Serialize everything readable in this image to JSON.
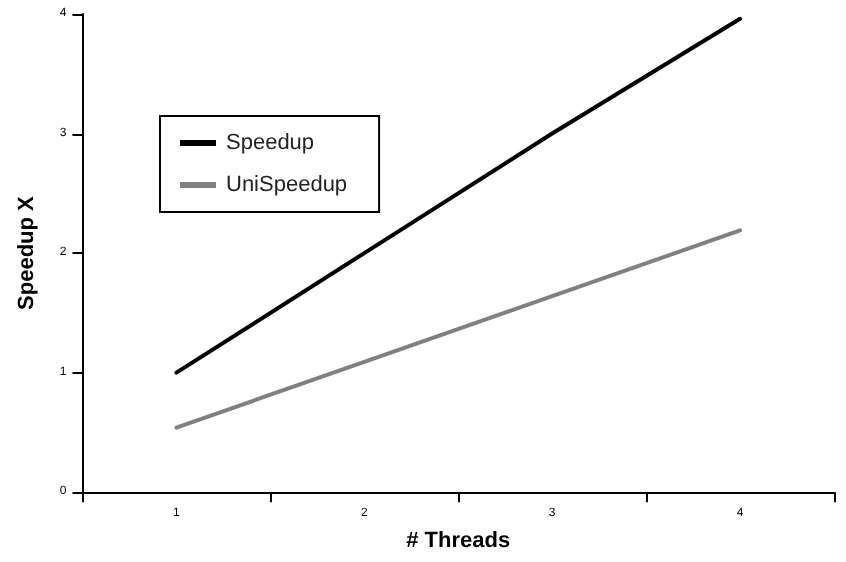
{
  "chart_data": {
    "type": "line",
    "xlabel": "# Threads",
    "ylabel": "Speedup X",
    "categories": [
      "1",
      "2",
      "3",
      "4"
    ],
    "series": [
      {
        "name": "Speedup",
        "color": "#000000",
        "values": [
          1.0,
          2.0,
          3.0,
          3.96
        ]
      },
      {
        "name": "UniSpeedup",
        "color": "#808080",
        "values": [
          0.54,
          1.09,
          1.64,
          2.19
        ]
      }
    ],
    "ylim": [
      0,
      4
    ],
    "yticks": [
      0,
      1,
      2,
      3,
      4
    ],
    "grid": false,
    "legend": "top left",
    "marker": "none",
    "line_style": "solid"
  }
}
